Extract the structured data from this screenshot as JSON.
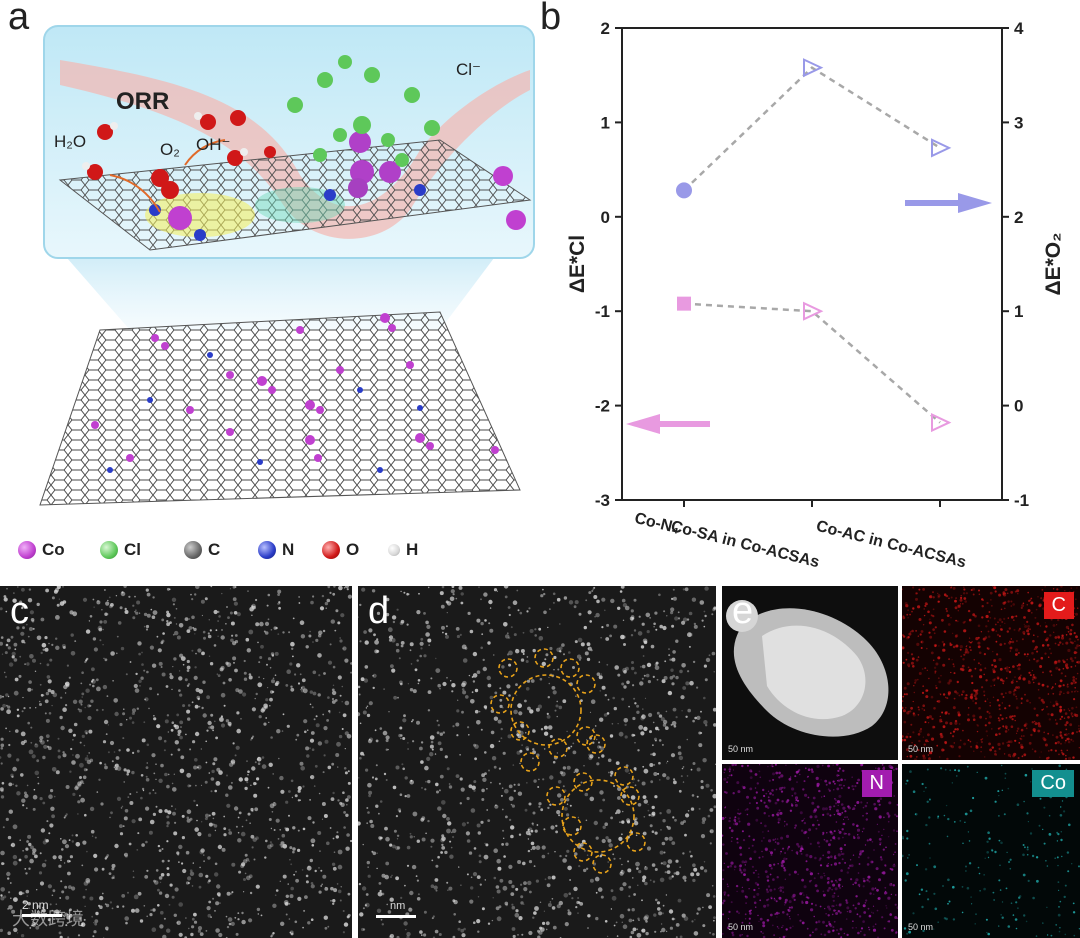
{
  "panels": {
    "a": "a",
    "b": "b",
    "c": "c",
    "d": "d",
    "e": "e"
  },
  "schematic": {
    "title": "ORR",
    "h2o": "H₂O",
    "o2": "O₂",
    "oh": "OH⁻",
    "cl": "Cl⁻"
  },
  "legend": [
    {
      "label": "Co",
      "color": "#c040d0",
      "icon": "co-atom-icon"
    },
    {
      "label": "Cl",
      "color": "#5ec85a",
      "icon": "cl-atom-icon"
    },
    {
      "label": "C",
      "color": "#666666",
      "icon": "c-atom-icon"
    },
    {
      "label": "N",
      "color": "#2a3cc8",
      "icon": "n-atom-icon"
    },
    {
      "label": "O",
      "color": "#d01818",
      "icon": "o-atom-icon"
    },
    {
      "label": "H",
      "color": "#e8e8e8",
      "icon": "h-atom-icon"
    }
  ],
  "chart_data": {
    "type": "scatter",
    "categories": [
      "Co-N₄",
      "Co-SA in Co-ACSAs",
      "Co-AC in Co-ACSAs"
    ],
    "ylabel_left": "ΔE*Cl",
    "ylabel_right": "ΔE*O₂",
    "ylim_left": [
      -3,
      2
    ],
    "ylim_right": [
      -1,
      4
    ],
    "yticks_left": [
      "-3",
      "-2",
      "-1",
      "0",
      "1",
      "2"
    ],
    "yticks_right": [
      "-1",
      "0",
      "1",
      "2",
      "3",
      "4"
    ],
    "series": [
      {
        "axis": "right",
        "color": "#9999e8",
        "values": [
          2.28,
          3.58,
          2.73
        ]
      },
      {
        "axis": "left",
        "color": "#e89ae0",
        "values": [
          -0.92,
          -1.0,
          -2.18
        ]
      }
    ],
    "grid": false
  },
  "mapping": {
    "c_label": "C",
    "n_label": "N",
    "co_label": "Co",
    "c_color": "#e31b1b",
    "n_color": "#a21caf",
    "co_color": "#138f8f",
    "scale_50": "50 nm"
  },
  "sem_scales": {
    "c": "2 nm",
    "d": "nm"
  },
  "watermark": "大数跨境"
}
